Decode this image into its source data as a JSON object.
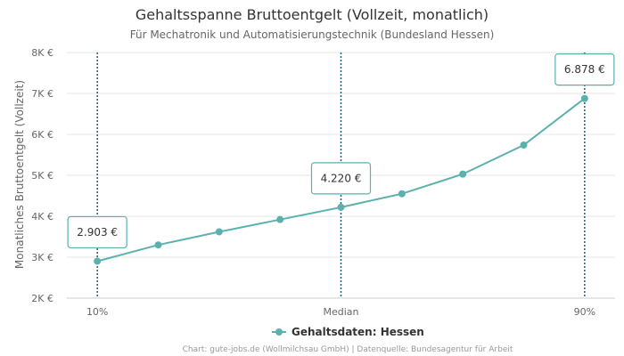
{
  "chart_data": {
    "type": "line",
    "title": "Gehaltsspanne Bruttoentgelt (Vollzeit, monatlich)",
    "subtitle": "Für Mechatronik und Automatisierungstechnik (Bundesland Hessen)",
    "ylabel": "Monatliches Bruttoentgelt (Vollzeit)",
    "ylim": [
      2000,
      8000
    ],
    "yticks": [
      {
        "value": 2000,
        "label": "2K €"
      },
      {
        "value": 3000,
        "label": "3K €"
      },
      {
        "value": 4000,
        "label": "4K €"
      },
      {
        "value": 5000,
        "label": "5K €"
      },
      {
        "value": 6000,
        "label": "6K €"
      },
      {
        "value": 7000,
        "label": "7K €"
      },
      {
        "value": 8000,
        "label": "8K €"
      }
    ],
    "x": [
      10,
      20,
      30,
      40,
      50,
      60,
      70,
      80,
      90
    ],
    "xticks": [
      {
        "value": 10,
        "label": "10%"
      },
      {
        "value": 50,
        "label": "Median"
      },
      {
        "value": 90,
        "label": "90%"
      }
    ],
    "series": [
      {
        "name": "Gehaltsdaten: Hessen",
        "color": "#5ab1ad",
        "values": [
          2903,
          3300,
          3620,
          3920,
          4220,
          4550,
          5030,
          5740,
          6878
        ]
      }
    ],
    "markers": [
      10,
      50,
      90
    ],
    "marker_color": "#1f5f7a",
    "data_labels": [
      {
        "x": 10,
        "value": 2903,
        "label": "2.903 €"
      },
      {
        "x": 50,
        "value": 4220,
        "label": "4.220 €"
      },
      {
        "x": 90,
        "value": 6878,
        "label": "6.878 €"
      }
    ],
    "grid": true,
    "legend": "bottom-center"
  },
  "credits": "Chart: gute-jobs.de (Wollmilchsau GmbH) | Datenquelle: Bundesagentur für Arbeit"
}
